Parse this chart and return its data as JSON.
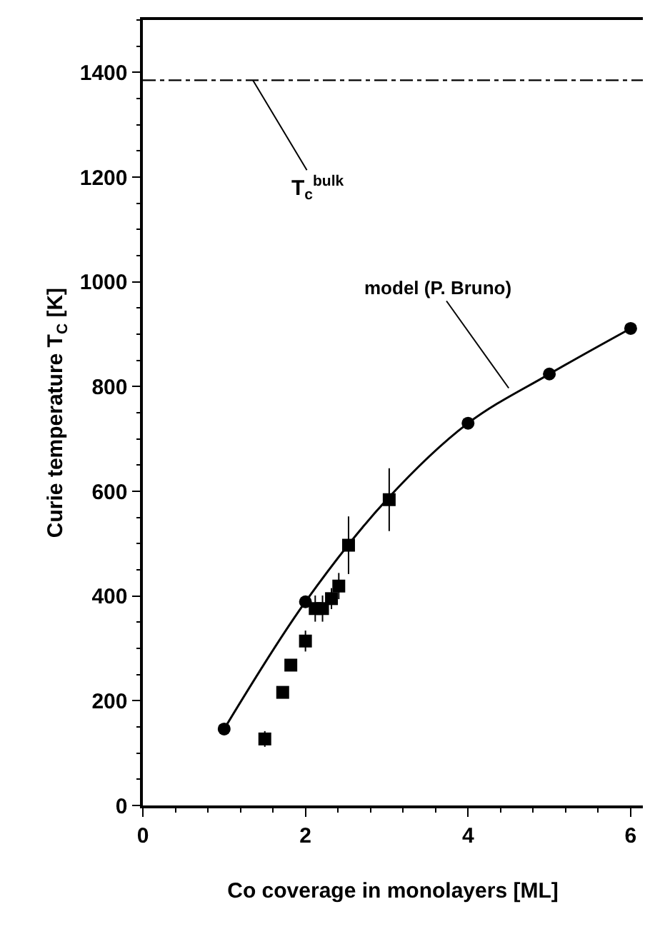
{
  "chart_data": {
    "type": "scatter",
    "xlabel": "Co coverage in monolayers [ML]",
    "ylabel": "Curie temperature T$_{C}$ [K]",
    "xlim": [
      0,
      6.15
    ],
    "xticks": [
      0,
      2,
      4,
      6
    ],
    "ylim": [
      0,
      1500
    ],
    "yticks": [
      0,
      200,
      400,
      600,
      800,
      1000,
      1200,
      1400
    ],
    "series": [
      {
        "type": "line",
        "color": "#000000",
        "marker": "none",
        "line_style": "solid",
        "x": [
          1,
          2,
          3,
          4,
          5,
          6
        ],
        "values": [
          146,
          389,
          584,
          730,
          824,
          911
        ]
      },
      {
        "type": "scatter",
        "color": "#000000",
        "marker": "circle",
        "x": [
          1,
          2,
          4,
          5,
          6
        ],
        "values": [
          146,
          389,
          730,
          824,
          911
        ]
      },
      {
        "color": "#000000",
        "marker": "square",
        "x": [
          1.5,
          1.72,
          1.82,
          2.0,
          2.12,
          2.21,
          2.32,
          2.41,
          2.53,
          3.03
        ],
        "values": [
          127,
          216,
          268,
          314,
          376,
          376,
          395,
          419,
          497,
          584
        ],
        "errors": [
          15,
          null,
          null,
          20,
          25,
          25,
          20,
          25,
          55,
          60
        ]
      }
    ],
    "ref_lines": [
      {
        "axis": "y",
        "value": 1385,
        "label": "T$_{c}$$^{bulk}$",
        "line_style": "dashdot",
        "color": "#000000"
      }
    ],
    "annotations": [
      {
        "text": "model (P. Bruno)",
        "x": 4.5,
        "y": 797
      }
    ]
  }
}
